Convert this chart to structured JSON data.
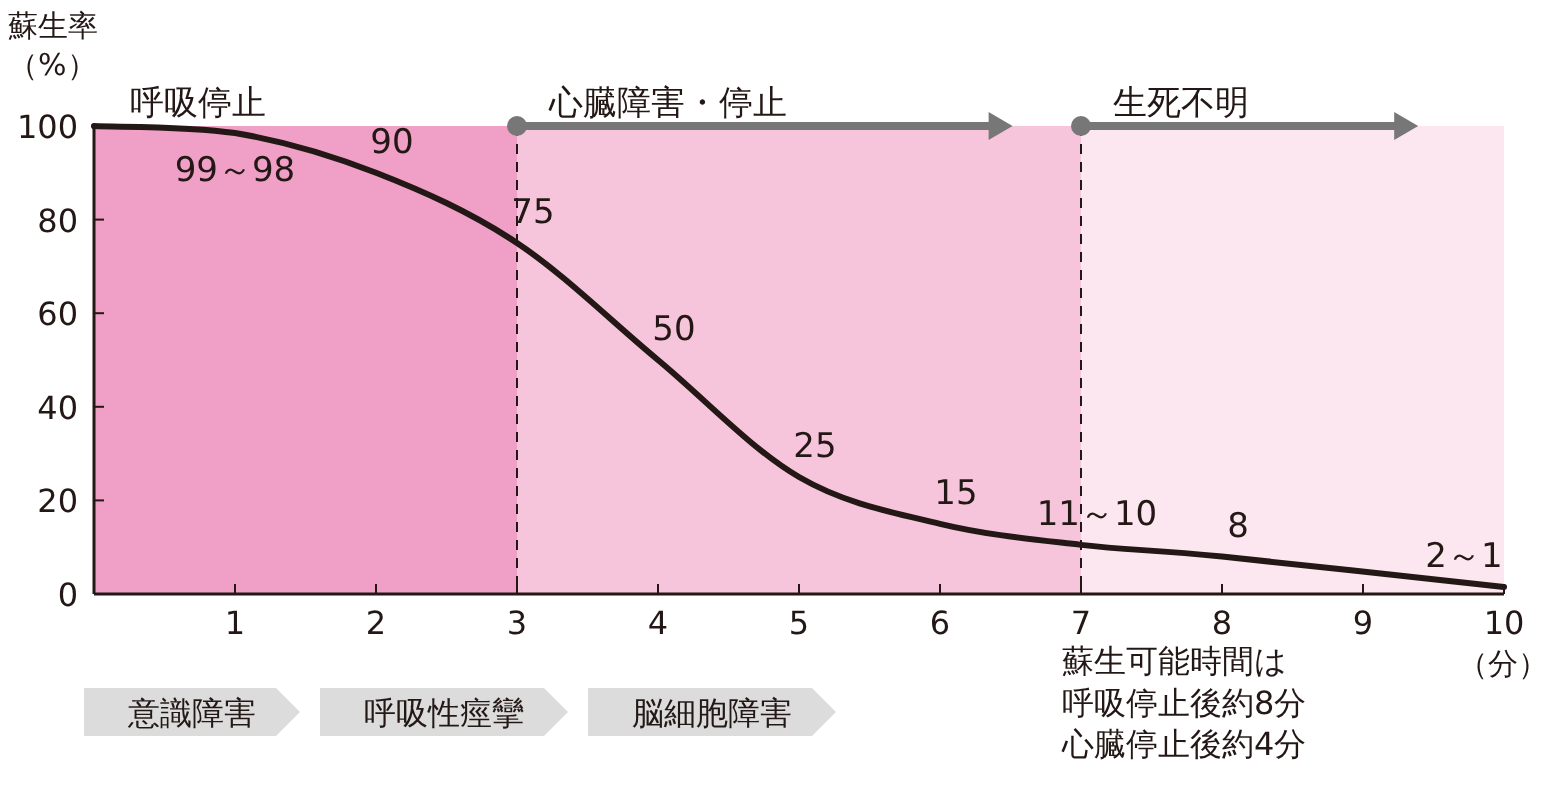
{
  "chart_data": {
    "type": "line",
    "ylabel": "蘇生率（%）",
    "xlabel": "（分）",
    "x": [
      0,
      1,
      2,
      3,
      4,
      5,
      6,
      7,
      8,
      10
    ],
    "series": [
      {
        "color": "#231815",
        "values": [
          100,
          98.5,
          90,
          75,
          50,
          25,
          15,
          10.5,
          8,
          1.5
        ],
        "value_labels": [
          null,
          "99～98",
          "90",
          "75",
          "50",
          "25",
          "15",
          "11～10",
          "8",
          "2～1"
        ]
      }
    ],
    "xlim": [
      0,
      10
    ],
    "ylim": [
      0,
      100
    ],
    "xticks": [
      1,
      2,
      3,
      4,
      5,
      6,
      7,
      8,
      9,
      10
    ],
    "yticks": [
      0,
      20,
      40,
      60,
      80,
      100
    ],
    "grid": false,
    "line_style": "solid",
    "marker": "none",
    "bands": [
      {
        "axis": "x",
        "from": 0,
        "to": 3,
        "label": "呼吸停止",
        "color": "#f0a0c6"
      },
      {
        "axis": "x",
        "from": 3,
        "to": 7,
        "label": "心臓障害・停止",
        "color": "#f7c5db"
      },
      {
        "axis": "x",
        "from": 7,
        "to": 10,
        "label": "生死不明",
        "color": "#fce6ef"
      }
    ],
    "ref_lines": [
      {
        "axis": "x",
        "value": 3,
        "line_style": "dashed",
        "color": "#231815"
      },
      {
        "axis": "x",
        "value": 7,
        "line_style": "dashed",
        "color": "#231815"
      }
    ],
    "annotations": [
      "意識障害",
      "呼吸性痙攣",
      "脳細胞障害",
      "蘇生可能時間は呼吸停止後約8分心臓停止後約4分"
    ]
  }
}
